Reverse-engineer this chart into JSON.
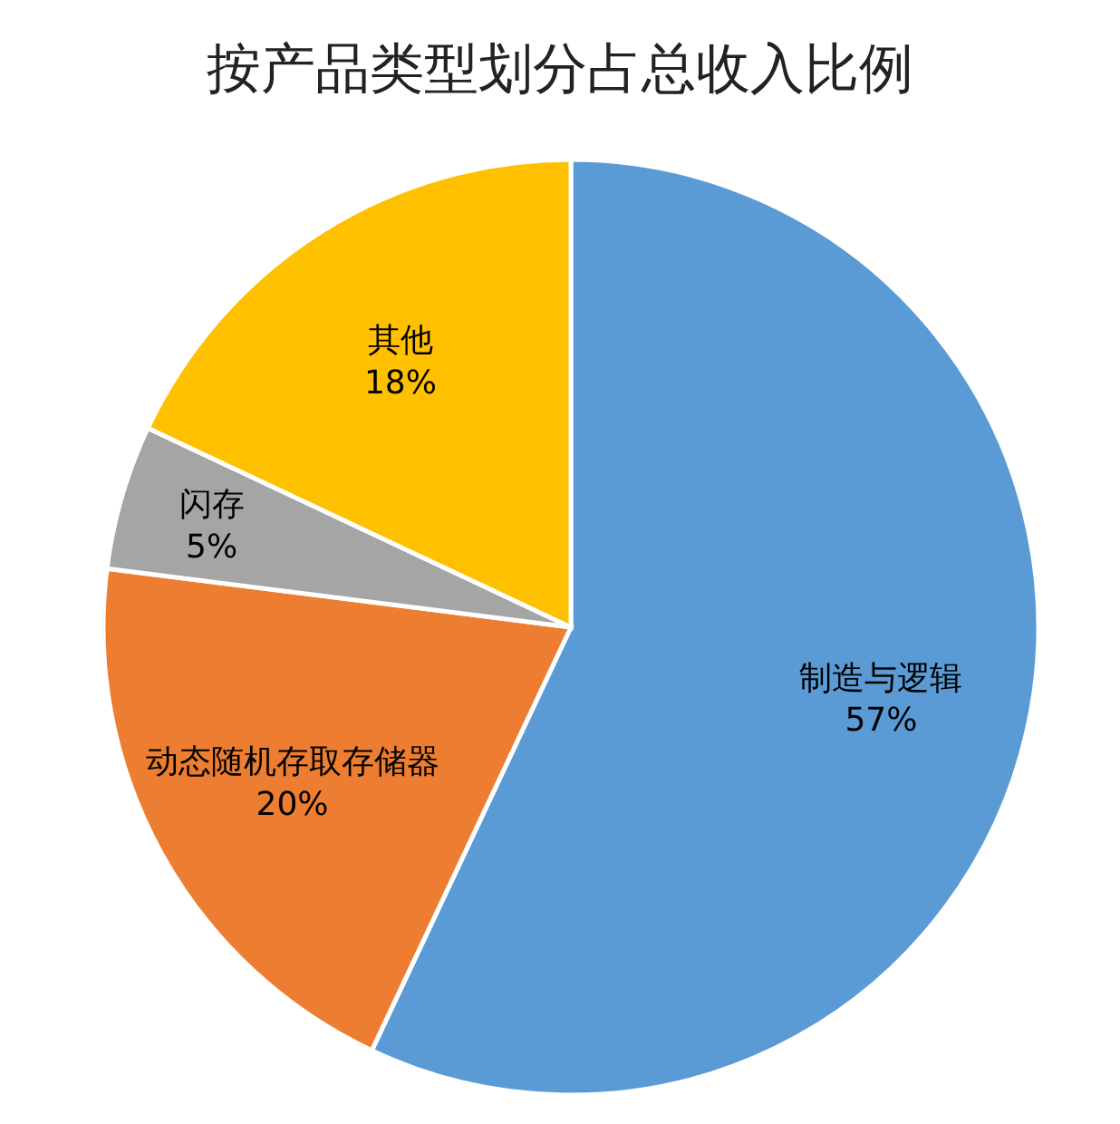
{
  "chart_data": {
    "type": "pie",
    "title": "按产品类型划分占总收入比例",
    "categories": [
      "制造与逻辑",
      "动态随机存取存储器",
      "闪存",
      "其他"
    ],
    "values": [
      57,
      20,
      5,
      18
    ],
    "colors": [
      "#5b9bd5",
      "#ed7d31",
      "#a5a5a5",
      "#ffc000"
    ],
    "value_labels": [
      "57%",
      "20%",
      "5%",
      "18%"
    ]
  }
}
